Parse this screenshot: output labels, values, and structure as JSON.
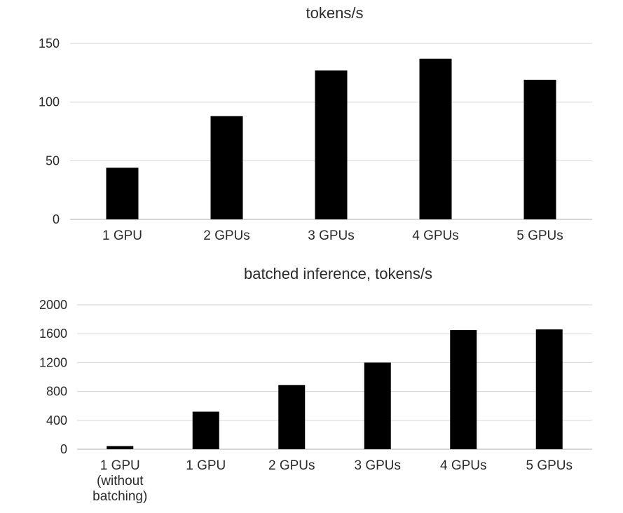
{
  "chart_data": [
    {
      "type": "bar",
      "title": "tokens/s",
      "xlabel": "",
      "ylabel": "",
      "categories": [
        [
          "1 GPU"
        ],
        [
          "2 GPUs"
        ],
        [
          "3 GPUs"
        ],
        [
          "4 GPUs"
        ],
        [
          "5 GPUs"
        ]
      ],
      "values": [
        44,
        88,
        127,
        137,
        119
      ],
      "ylim": [
        0,
        150
      ],
      "yticks": [
        0,
        50,
        100,
        150
      ],
      "grid": true,
      "legend": "none",
      "bar_color": "#000000"
    },
    {
      "type": "bar",
      "title": "batched inference, tokens/s",
      "xlabel": "",
      "ylabel": "",
      "categories": [
        [
          "1 GPU",
          "(without",
          "batching)"
        ],
        [
          "1 GPU"
        ],
        [
          "2 GPUs"
        ],
        [
          "3 GPUs"
        ],
        [
          "4 GPUs"
        ],
        [
          "5 GPUs"
        ]
      ],
      "values": [
        44,
        520,
        890,
        1200,
        1650,
        1660
      ],
      "ylim": [
        0,
        2000
      ],
      "yticks": [
        0,
        400,
        800,
        1200,
        1600,
        2000
      ],
      "grid": true,
      "legend": "none",
      "bar_color": "#000000"
    }
  ]
}
